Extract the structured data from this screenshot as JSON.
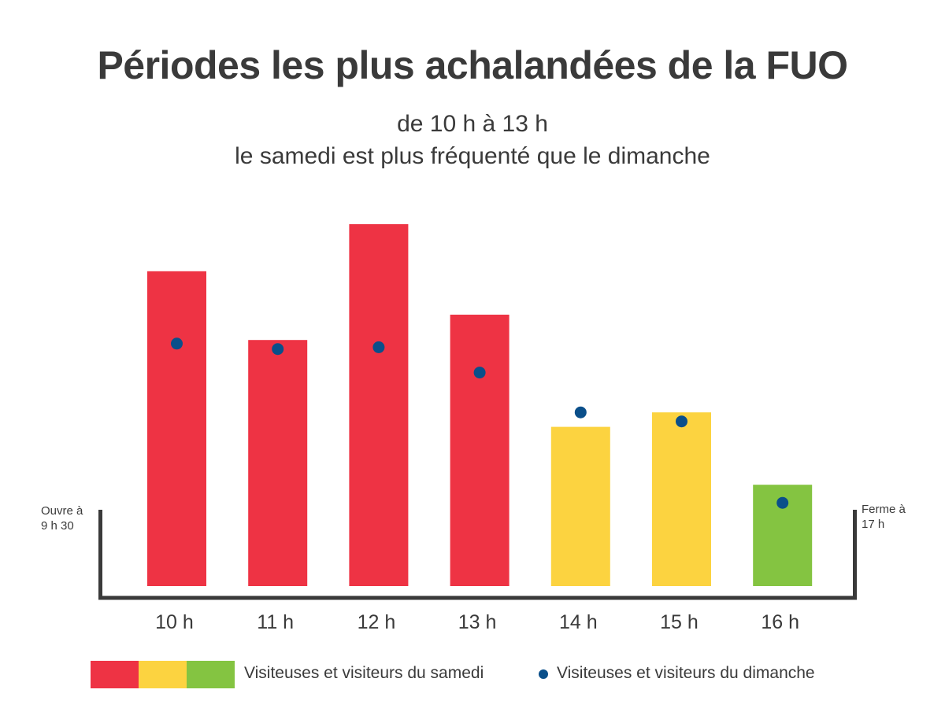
{
  "title": "Périodes les plus achalandées de la FUO",
  "subtitle_line1": "de 10 h à 13 h",
  "subtitle_line2": "le samedi est plus fréquenté que le dimanche",
  "notes": {
    "open": [
      "Ouvre à",
      "9 h 30"
    ],
    "close": [
      "Ferme à",
      "17 h"
    ]
  },
  "colors": {
    "busy": "#ee3344",
    "moderate": "#fcd340",
    "quiet": "#84c441",
    "sunday_dot": "#0a4f8a",
    "axis": "#3a3a3a"
  },
  "chart_data": {
    "type": "bar",
    "categories": [
      "10 h",
      "11 h",
      "12 h",
      "13 h",
      "14 h",
      "15 h",
      "16 h"
    ],
    "series": [
      {
        "name": "Visiteuses et visiteurs du samedi",
        "type": "bar",
        "values": [
          87,
          68,
          100,
          75,
          44,
          48,
          28
        ],
        "levels": [
          "busy",
          "busy",
          "busy",
          "busy",
          "moderate",
          "moderate",
          "quiet"
        ]
      },
      {
        "name": "Visiteuses et visiteurs du dimanche",
        "type": "scatter",
        "values": [
          67,
          65.5,
          66,
          59,
          48,
          45.5,
          23
        ]
      }
    ],
    "ylim": [
      0,
      100
    ],
    "y_axis_labels": false,
    "grid": false,
    "legend": "bottom"
  },
  "legend": {
    "saturday": "Visiteuses et visiteurs du samedi",
    "sunday": "Visiteuses et visiteurs du dimanche"
  }
}
